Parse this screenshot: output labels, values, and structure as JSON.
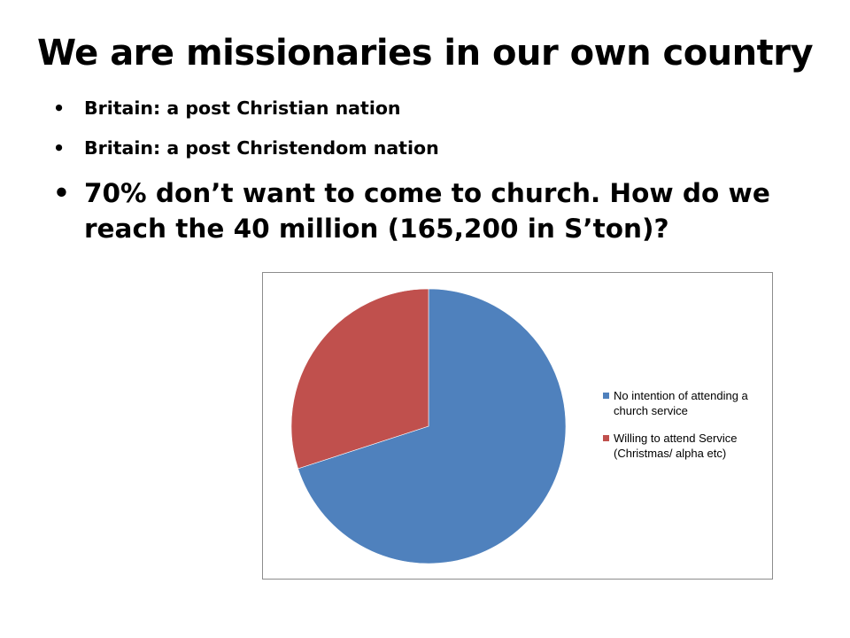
{
  "slide": {
    "title": "We are missionaries in our own country",
    "bullets": [
      {
        "text": "Britain: a post Christian nation",
        "size": "small"
      },
      {
        "text": "Britain: a post Christendom nation",
        "size": "small"
      },
      {
        "text": "70% don’t want to come to church. How do we reach the 40 million (165,200 in S’ton)?",
        "size": "large"
      }
    ],
    "bullet_symbol": "•"
  },
  "chart_data": {
    "type": "pie",
    "title": "",
    "slices": [
      {
        "name": "No intention of attending a church service",
        "value": 70,
        "color": "#4f81bd"
      },
      {
        "name": "Willing to attend Service (Christmas/ alpha etc)",
        "value": 30,
        "color": "#c0504d"
      }
    ],
    "start_angle_deg": 0,
    "direction": "clockwise",
    "legend_position": "right"
  }
}
